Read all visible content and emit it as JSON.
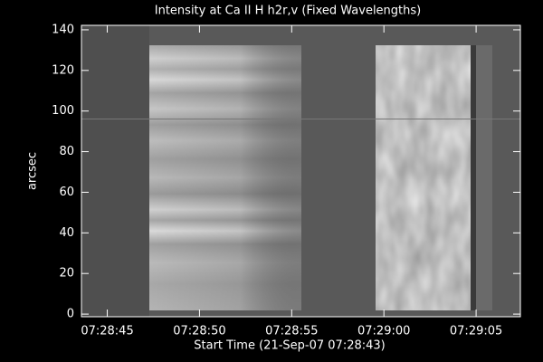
{
  "chart_data": {
    "type": "image",
    "title": "Intensity at Ca II H h2r,v (Fixed Wavelengths)",
    "x_label": "Start Time (21-Sep-07 07:28:43)",
    "y_label": "arcsec",
    "xlim": [
      0.6,
      24.4
    ],
    "xticks": [
      {
        "value": 2,
        "label": "07:28:45"
      },
      {
        "value": 7,
        "label": "07:28:50"
      },
      {
        "value": 12,
        "label": "07:28:55"
      },
      {
        "value": 17,
        "label": "07:29:00"
      },
      {
        "value": 22,
        "label": "07:29:05"
      }
    ],
    "ylim": [
      -1.3,
      142.2
    ],
    "yticks": [
      0,
      20,
      40,
      60,
      80,
      100,
      120,
      140
    ]
  }
}
